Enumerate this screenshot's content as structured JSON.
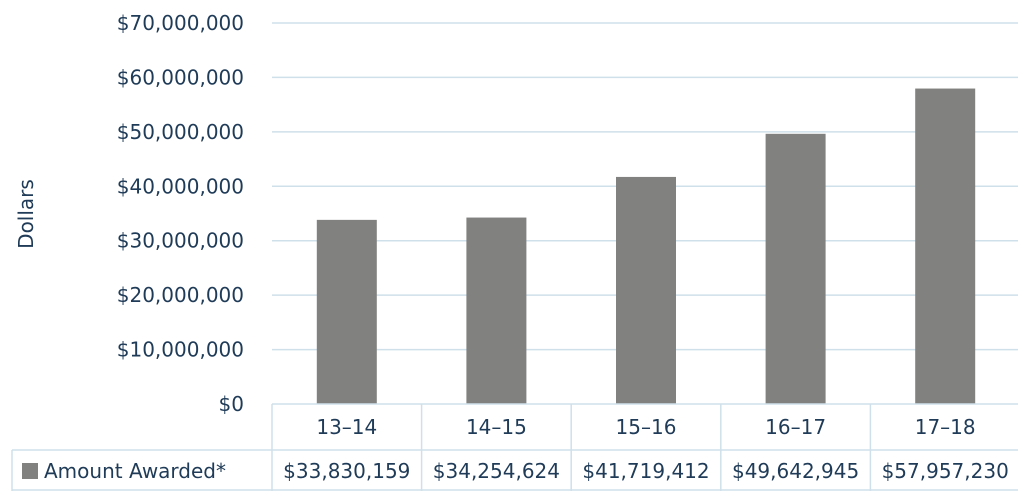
{
  "chart_data": {
    "type": "bar",
    "title": "",
    "xlabel": "",
    "ylabel": "Dollars",
    "ylim": [
      0,
      70000000
    ],
    "y_ticks": [
      {
        "value": 0,
        "label": "$0"
      },
      {
        "value": 10000000,
        "label": "$10,000,000"
      },
      {
        "value": 20000000,
        "label": "$20,000,000"
      },
      {
        "value": 30000000,
        "label": "$30,000,000"
      },
      {
        "value": 40000000,
        "label": "$40,000,000"
      },
      {
        "value": 50000000,
        "label": "$50,000,000"
      },
      {
        "value": 60000000,
        "label": "$60,000,000"
      },
      {
        "value": 70000000,
        "label": "$70,000,000"
      }
    ],
    "grid": true,
    "categories": [
      "13–14",
      "14–15",
      "15–16",
      "16–17",
      "17–18"
    ],
    "series": [
      {
        "name": "Amount Awarded*",
        "color": "#818180",
        "values": [
          33830159,
          34254624,
          41719412,
          49642945,
          57957230
        ],
        "value_labels": [
          "$33,830,159",
          "$34,254,624",
          "$41,719,412",
          "$49,642,945",
          "$57,957,230"
        ]
      }
    ],
    "legend": "data-table"
  }
}
